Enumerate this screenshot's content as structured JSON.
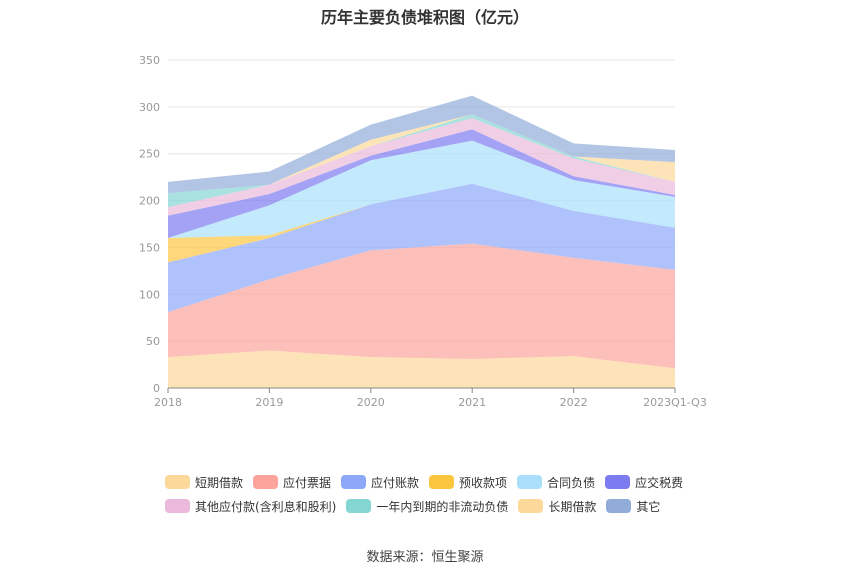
{
  "chart_data": {
    "type": "area",
    "title": "历年主要负债堆积图（亿元）",
    "source": "数据来源：恒生聚源",
    "categories": [
      "2018",
      "2019",
      "2020",
      "2021",
      "2022",
      "2023Q1-Q3"
    ],
    "ylim": [
      0,
      350
    ],
    "yticks": [
      0,
      50,
      100,
      150,
      200,
      250,
      300,
      350
    ],
    "grid": true,
    "legend_position": "bottom",
    "series": [
      {
        "name": "短期借款",
        "color": "#FCD89A",
        "values": [
          33,
          40,
          33,
          31,
          34,
          21
        ]
      },
      {
        "name": "应付票据",
        "color": "#FCA49C",
        "values": [
          48,
          76,
          114,
          123,
          105,
          105
        ]
      },
      {
        "name": "应付账款",
        "color": "#8EA8F9",
        "values": [
          53,
          44,
          49,
          64,
          50,
          45
        ]
      },
      {
        "name": "预收款项",
        "color": "#FCC640",
        "values": [
          26,
          3,
          0,
          0,
          0,
          0
        ]
      },
      {
        "name": "合同负债",
        "color": "#A9DFFB",
        "values": [
          0,
          32,
          47,
          46,
          33,
          33
        ]
      },
      {
        "name": "应交税费",
        "color": "#7C7BF0",
        "values": [
          24,
          12,
          5,
          12,
          4,
          2
        ]
      },
      {
        "name": "其他应付款(含利息和股利)",
        "color": "#EAB9DB",
        "values": [
          9,
          10,
          10,
          12,
          19,
          14
        ]
      },
      {
        "name": "一年内到期的非流动负债",
        "color": "#84D6D3",
        "values": [
          15,
          0,
          0,
          4,
          2,
          0
        ]
      },
      {
        "name": "长期借款",
        "color": "#FCD89A",
        "values": [
          0,
          0,
          7,
          0,
          0,
          21
        ]
      },
      {
        "name": "其它",
        "color": "#91ACD8",
        "values": [
          12,
          14,
          16,
          20,
          14,
          13
        ]
      }
    ]
  }
}
